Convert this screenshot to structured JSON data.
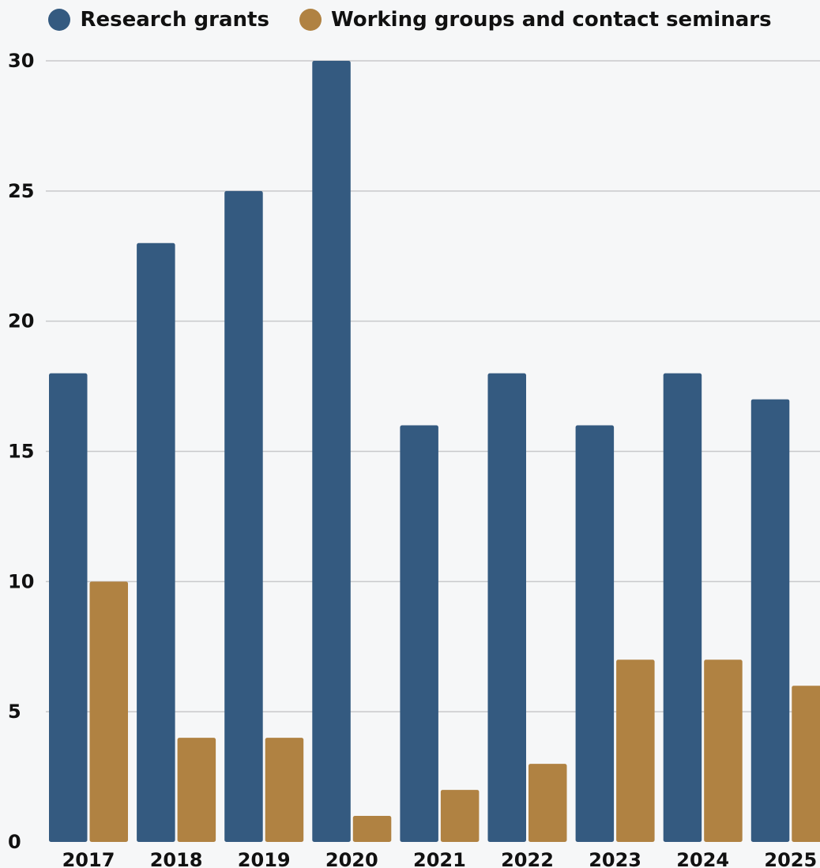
{
  "chart_data": {
    "type": "bar",
    "title": "",
    "xlabel": "",
    "ylabel": "",
    "ylim": [
      0,
      30
    ],
    "yticks": [
      0,
      5,
      10,
      15,
      20,
      25,
      30
    ],
    "grid": true,
    "legend_position": "top-center",
    "categories": [
      "2017",
      "2018",
      "2019",
      "2020",
      "2021",
      "2022",
      "2023",
      "2024",
      "2025"
    ],
    "series": [
      {
        "name": "Research grants",
        "color": "#345a80",
        "values": [
          18,
          23,
          25,
          30,
          16,
          18,
          16,
          18,
          17
        ]
      },
      {
        "name": "Working groups and contact seminars",
        "color": "#b08242",
        "values": [
          10,
          4,
          4,
          1,
          2,
          3,
          7,
          7,
          6
        ]
      }
    ]
  }
}
